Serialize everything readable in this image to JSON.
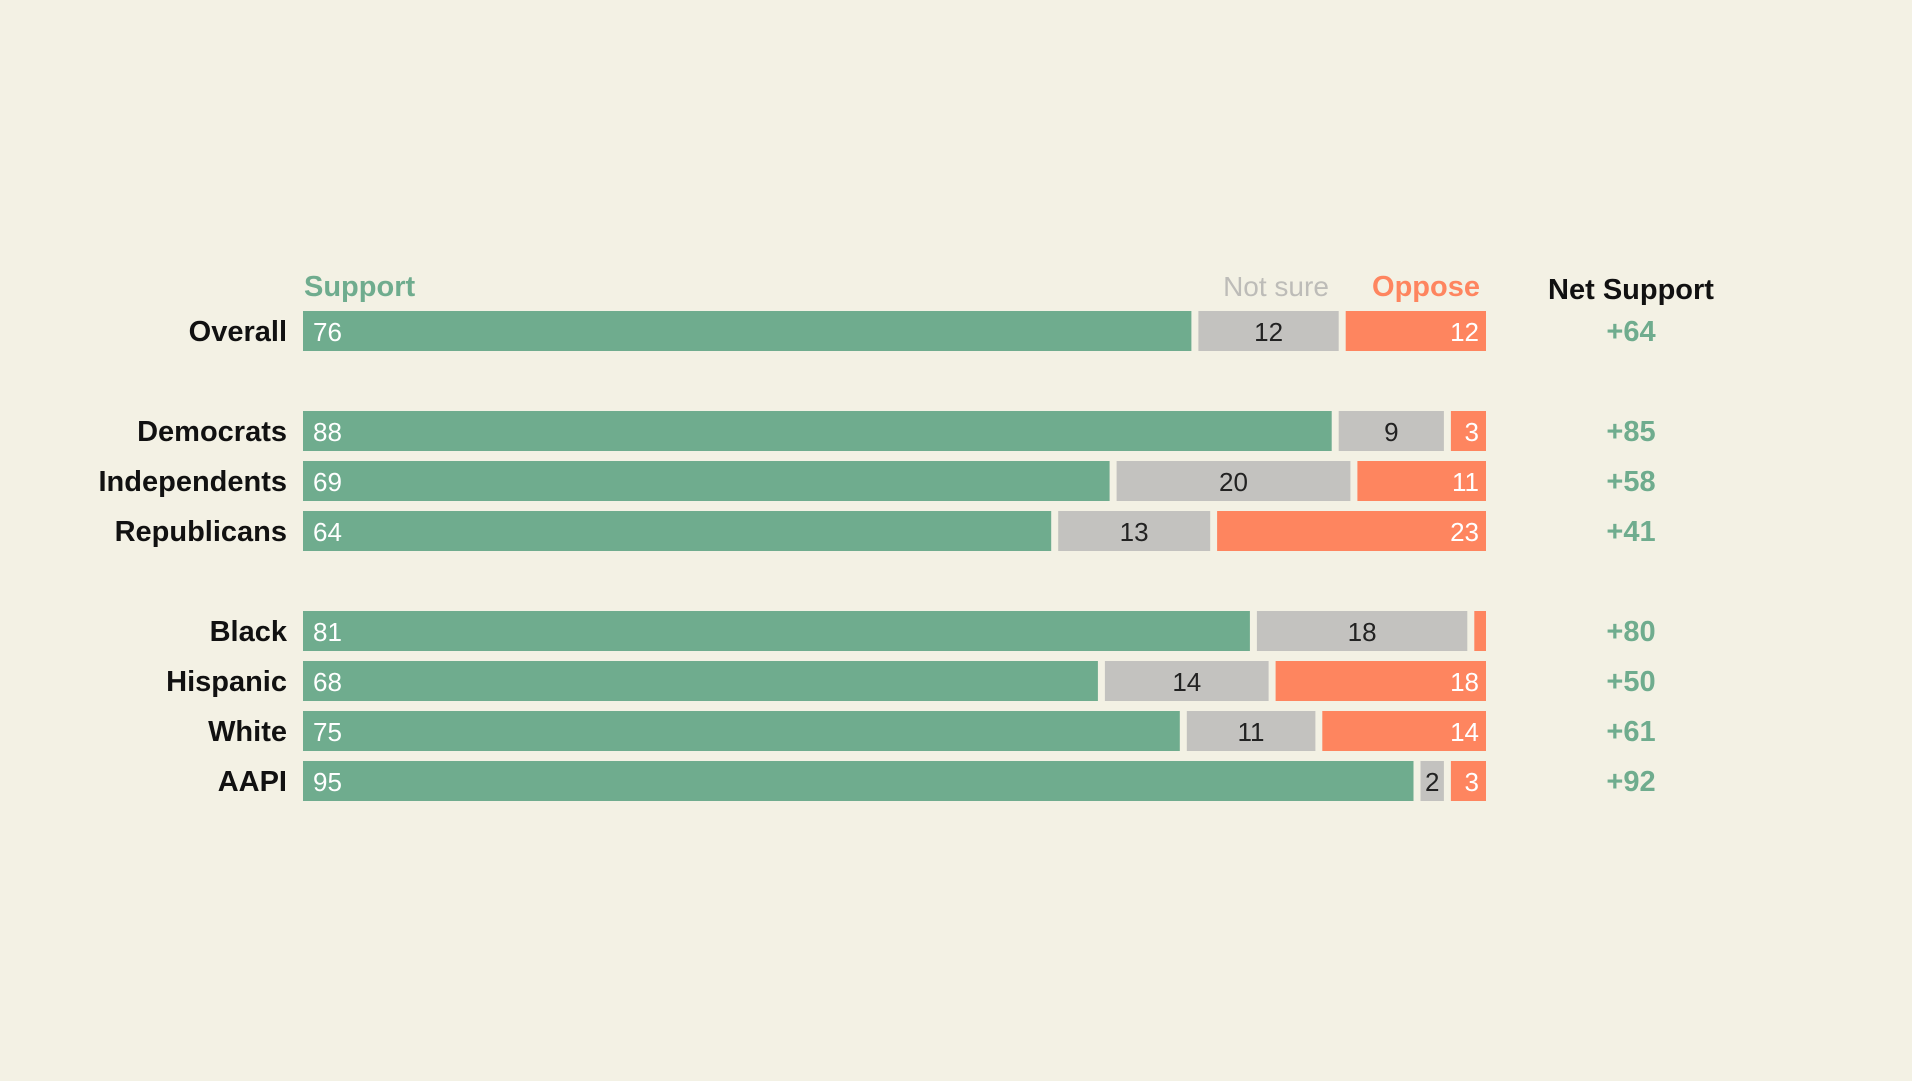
{
  "colors": {
    "background": "#f3f1e4",
    "support": "#6fac8e",
    "not_sure": "#c3c2bf",
    "oppose": "#fe855f",
    "net": "#6fac8e",
    "label": "#111111",
    "not_sure_header": "#bdbcb8"
  },
  "chart_data": {
    "type": "bar",
    "orientation": "horizontal",
    "stacked": true,
    "title": "",
    "xlim": [
      0,
      100
    ],
    "headers": {
      "support": "Support",
      "not_sure": "Not sure",
      "oppose": "Oppose",
      "net": "Net Support"
    },
    "groups": [
      [
        "Overall"
      ],
      [
        "Democrats",
        "Independents",
        "Republicans"
      ],
      [
        "Black",
        "Hispanic",
        "White",
        "AAPI"
      ]
    ],
    "categories": [
      "Overall",
      "Democrats",
      "Independents",
      "Republicans",
      "Black",
      "Hispanic",
      "White",
      "AAPI"
    ],
    "series": [
      {
        "name": "Support",
        "values": [
          76,
          88,
          69,
          64,
          81,
          68,
          75,
          95
        ]
      },
      {
        "name": "Not sure",
        "values": [
          12,
          9,
          20,
          13,
          18,
          14,
          11,
          2
        ]
      },
      {
        "name": "Oppose",
        "values": [
          12,
          3,
          11,
          23,
          1,
          18,
          14,
          3
        ]
      }
    ],
    "value_labels": {
      "Support": [
        "76",
        "88",
        "69",
        "64",
        "81",
        "68",
        "75",
        "95"
      ],
      "Not sure": [
        "12",
        "9",
        "20",
        "13",
        "18",
        "14",
        "11",
        "2"
      ],
      "Oppose": [
        "12",
        "3",
        "11",
        "23",
        "",
        "18",
        "14",
        "3"
      ]
    },
    "net_support": [
      "+64",
      "+85",
      "+58",
      "+41",
      "+80",
      "+50",
      "+61",
      "+92"
    ]
  }
}
